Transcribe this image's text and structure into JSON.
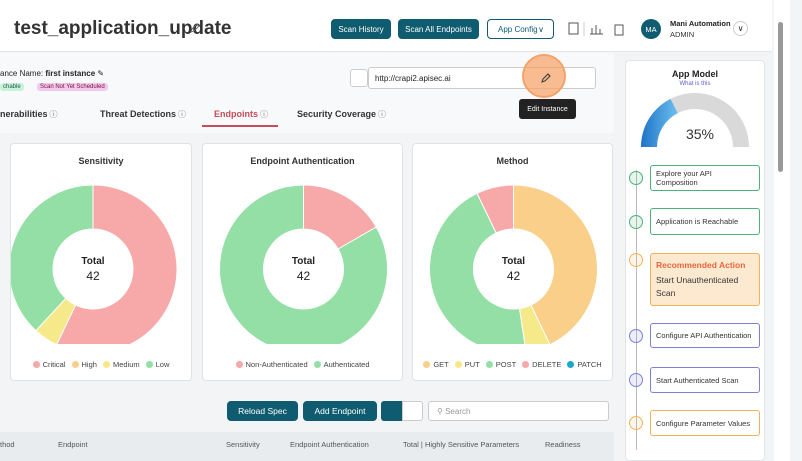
{
  "header": {
    "title": "test_application_update",
    "buttons": [
      "Scan History",
      "Scan All Endpoints",
      "App Config"
    ],
    "user": {
      "initials": "MA",
      "name": "Mani Automation",
      "role": "ADMIN"
    }
  },
  "instance": {
    "label": "ance Name:",
    "name": "first instance",
    "badges": [
      "chable",
      "Scan Not Yet Scheduled"
    ],
    "url": "http://crapi2.apisec.ai",
    "tooltip": "Edit Instance"
  },
  "tabs": [
    "nerabilities",
    "Threat Detections",
    "Endpoints",
    "Security Coverage"
  ],
  "chart_data": [
    {
      "type": "donut",
      "title": "Sensitivity",
      "center_label": "Total",
      "total": 42,
      "categories": [
        "Critical",
        "High",
        "Medium",
        "Low"
      ],
      "values": [
        24,
        0,
        2,
        16
      ],
      "colors": [
        "#f7a8a8",
        "#f9cf8a",
        "#f6e98a",
        "#93dfa6"
      ]
    },
    {
      "type": "donut",
      "title": "Endpoint Authentication",
      "center_label": "Total",
      "total": 42,
      "categories": [
        "Non-Authenticated",
        "Authenticated"
      ],
      "values": [
        7,
        35
      ],
      "colors": [
        "#f7a8a8",
        "#93dfa6"
      ]
    },
    {
      "type": "donut",
      "title": "Method",
      "center_label": "Total",
      "total": 42,
      "categories": [
        "GET",
        "PUT",
        "POST",
        "DELETE",
        "PATCH"
      ],
      "values": [
        18,
        2,
        19,
        3,
        0
      ],
      "colors": [
        "#f9cf8a",
        "#f6e98a",
        "#93dfa6",
        "#f7a8a8",
        "#1aa7c9"
      ]
    }
  ],
  "toolbar": {
    "buttons": [
      "Reload Spec",
      "Add Endpoint"
    ],
    "search_placeholder": "Search"
  },
  "table": {
    "columns": [
      "thod",
      "Endpoint",
      "Sensitivity",
      "Endpoint Authentication",
      "Total | Highly Sensitive Parameters",
      "Readiness"
    ]
  },
  "app_model": {
    "title": "App Model",
    "link": "What is this",
    "progress": 35,
    "progress_label": "35%",
    "steps": [
      {
        "text": "Explore your API Composition"
      },
      {
        "text": "Application is Reachable"
      },
      {
        "heading": "Recommended Action",
        "text": "Start Unauthenticated Scan"
      },
      {
        "text": "Configure API Authentication"
      },
      {
        "text": "Start Authenticated Scan"
      },
      {
        "text": "Configure Parameter Values"
      }
    ]
  }
}
